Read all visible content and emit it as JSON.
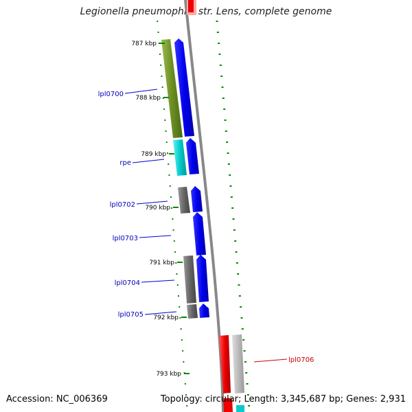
{
  "title": "Legionella pneumophila str. Lens, complete genome",
  "footer": {
    "accession": "Accession: NC_006369",
    "topology": "Topology: circular; Length: 3,345,687 bp; Genes: 2,931"
  },
  "ticks": [
    "787 kbp",
    "788 kbp",
    "789 kbp",
    "790 kbp",
    "791 kbp",
    "792 kbp",
    "793 kbp"
  ],
  "genes": [
    {
      "label": "lpl0700",
      "color": "#0000bb"
    },
    {
      "label": "rpe",
      "color": "#0000bb"
    },
    {
      "label": "lpl0702",
      "color": "#0000bb"
    },
    {
      "label": "lpl0703",
      "color": "#0000bb"
    },
    {
      "label": "lpl0704",
      "color": "#0000bb"
    },
    {
      "label": "lpl0705",
      "color": "#0000bb"
    },
    {
      "label": "lpl0706",
      "color": "#cc0000"
    }
  ],
  "colors": {
    "cds_forward": "#0000ee",
    "cog_green": "#6b8e23",
    "cog_cyan": "#00cccc",
    "cog_gray": "#666666",
    "cog_red": "#ee0000",
    "cog_lightgray": "#bbbbbb",
    "backbone": "#888888",
    "tick_green": "#008800"
  }
}
